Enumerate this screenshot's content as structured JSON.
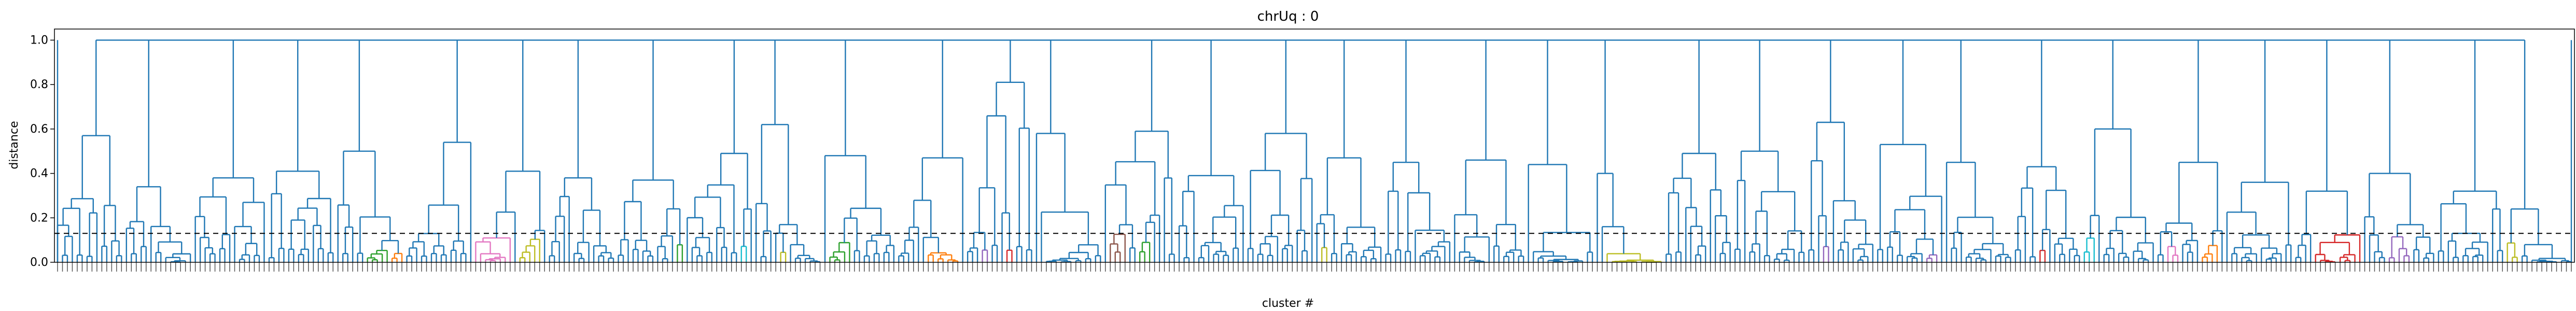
{
  "chart_data": {
    "type": "dendrogram",
    "title": "chrUq : 0",
    "xlabel": "cluster #",
    "ylabel": "distance",
    "ylim": [
      0,
      1.05
    ],
    "yticks": [
      0.0,
      0.2,
      0.4,
      0.6,
      0.8,
      1.0
    ],
    "ytick_labels": [
      "0.0",
      "0.2",
      "0.4",
      "0.6",
      "0.8",
      "1.0"
    ],
    "cut_threshold": 0.13,
    "leaf_count": 512,
    "root_height": 1.0,
    "secondary_heights": [
      0.57,
      0.34,
      0.38,
      0.41,
      0.5,
      0.54,
      0.41,
      0.38,
      0.37,
      0.49,
      0.62,
      0.48,
      0.47,
      0.81,
      0.58,
      0.59,
      0.39,
      0.58,
      0.47,
      0.45,
      0.46,
      0.44,
      0.4,
      0.49,
      0.5,
      0.63,
      0.53,
      0.45,
      0.43,
      0.6,
      0.45,
      0.36,
      0.32,
      0.4,
      0.32,
      0.24
    ],
    "colors": {
      "link": "#1f77b4",
      "threshold_line": "#000000",
      "highlight": [
        "#ff7f0e",
        "#2ca02c",
        "#d62728",
        "#e377c2",
        "#8c564b",
        "#bcbd22",
        "#17becf",
        "#9467bd"
      ]
    }
  }
}
